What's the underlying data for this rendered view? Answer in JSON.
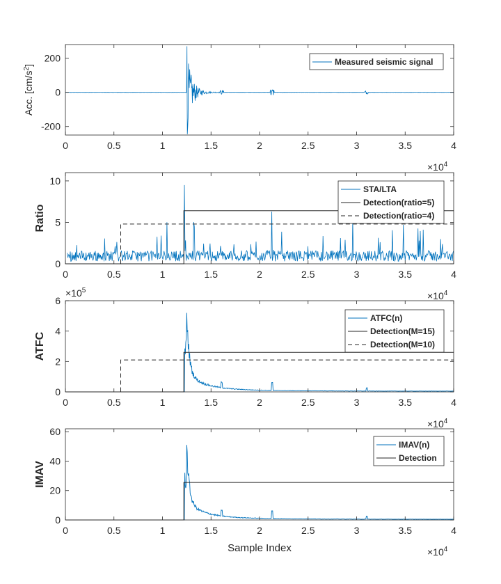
{
  "colors": {
    "signal": "#0072BD",
    "detection": "#262626",
    "axis": "#262626",
    "background": "#ffffff"
  },
  "x_axis_label": "Sample Index",
  "x_exponent": {
    "base": "×10",
    "exp": "4"
  },
  "y2_exponent": {
    "base": "×10",
    "exp": "5"
  },
  "chart_data": [
    {
      "type": "line",
      "ylabel": "Acc. [cm/s",
      "ylabel_sup": "2",
      "ylabel_close": "]",
      "xlim": [
        0,
        40000
      ],
      "ylim": [
        -250,
        280
      ],
      "xticks": [
        "0",
        "0.5",
        "1",
        "1.5",
        "2",
        "2.5",
        "3",
        "3.5",
        "4"
      ],
      "yticks": [
        {
          "v": -200,
          "label": "-200"
        },
        {
          "v": 0,
          "label": "0"
        },
        {
          "v": 200,
          "label": "200"
        }
      ],
      "legend": [
        "Measured seismic signal"
      ],
      "series": [
        {
          "name": "Measured seismic signal",
          "kind": "signal",
          "onset": 12500,
          "peak": 270,
          "trough": -245
        }
      ]
    },
    {
      "type": "line",
      "ylabel": "Ratio",
      "xlim": [
        0,
        40000
      ],
      "ylim": [
        0,
        11
      ],
      "xticks": [
        "0",
        "0.5",
        "1",
        "1.5",
        "2",
        "2.5",
        "3",
        "3.5",
        "4"
      ],
      "yticks": [
        {
          "v": 0,
          "label": "0"
        },
        {
          "v": 5,
          "label": "5"
        },
        {
          "v": 10,
          "label": "10"
        }
      ],
      "legend": [
        "STA/LTA",
        "Detection(ratio=5)",
        "Detection(ratio=4)"
      ],
      "series": [
        {
          "name": "STA/LTA",
          "kind": "stalta",
          "peak": 9.5
        },
        {
          "name": "Detection(ratio=5)",
          "kind": "step",
          "start": 12200,
          "level": 6.4,
          "dash": false
        },
        {
          "name": "Detection(ratio=4)",
          "kind": "step",
          "start": 5700,
          "level": 4.8,
          "dash": true
        }
      ]
    },
    {
      "type": "line",
      "ylabel": "ATFC",
      "xlim": [
        0,
        40000
      ],
      "ylim": [
        0,
        6
      ],
      "xticks": [
        "0",
        "0.5",
        "1",
        "1.5",
        "2",
        "2.5",
        "3",
        "3.5",
        "4"
      ],
      "yticks": [
        {
          "v": 0,
          "label": "0"
        },
        {
          "v": 2,
          "label": "2"
        },
        {
          "v": 4,
          "label": "4"
        },
        {
          "v": 6,
          "label": "6"
        }
      ],
      "legend": [
        "ATFC(n)",
        "Detection(M=15)",
        "Detection(M=10)"
      ],
      "series": [
        {
          "name": "ATFC(n)",
          "kind": "decay",
          "peak": 5.2,
          "base": 0.05
        },
        {
          "name": "Detection(M=15)",
          "kind": "step",
          "start": 12200,
          "level": 2.6,
          "dash": false
        },
        {
          "name": "Detection(M=10)",
          "kind": "step",
          "start": 5700,
          "level": 2.1,
          "dash": true
        }
      ]
    },
    {
      "type": "line",
      "ylabel": "IMAV",
      "xlim": [
        0,
        40000
      ],
      "ylim": [
        0,
        62
      ],
      "xticks": [
        "0",
        "0.5",
        "1",
        "1.5",
        "2",
        "2.5",
        "3",
        "3.5",
        "4"
      ],
      "yticks": [
        {
          "v": 0,
          "label": "0"
        },
        {
          "v": 20,
          "label": "20"
        },
        {
          "v": 40,
          "label": "40"
        },
        {
          "v": 60,
          "label": "60"
        }
      ],
      "legend": [
        "IMAV(n)",
        "Detection"
      ],
      "series": [
        {
          "name": "IMAV(n)",
          "kind": "decay",
          "peak": 51,
          "base": 0.5
        },
        {
          "name": "Detection",
          "kind": "step",
          "start": 12200,
          "level": 25.5,
          "dash": false
        }
      ]
    }
  ]
}
